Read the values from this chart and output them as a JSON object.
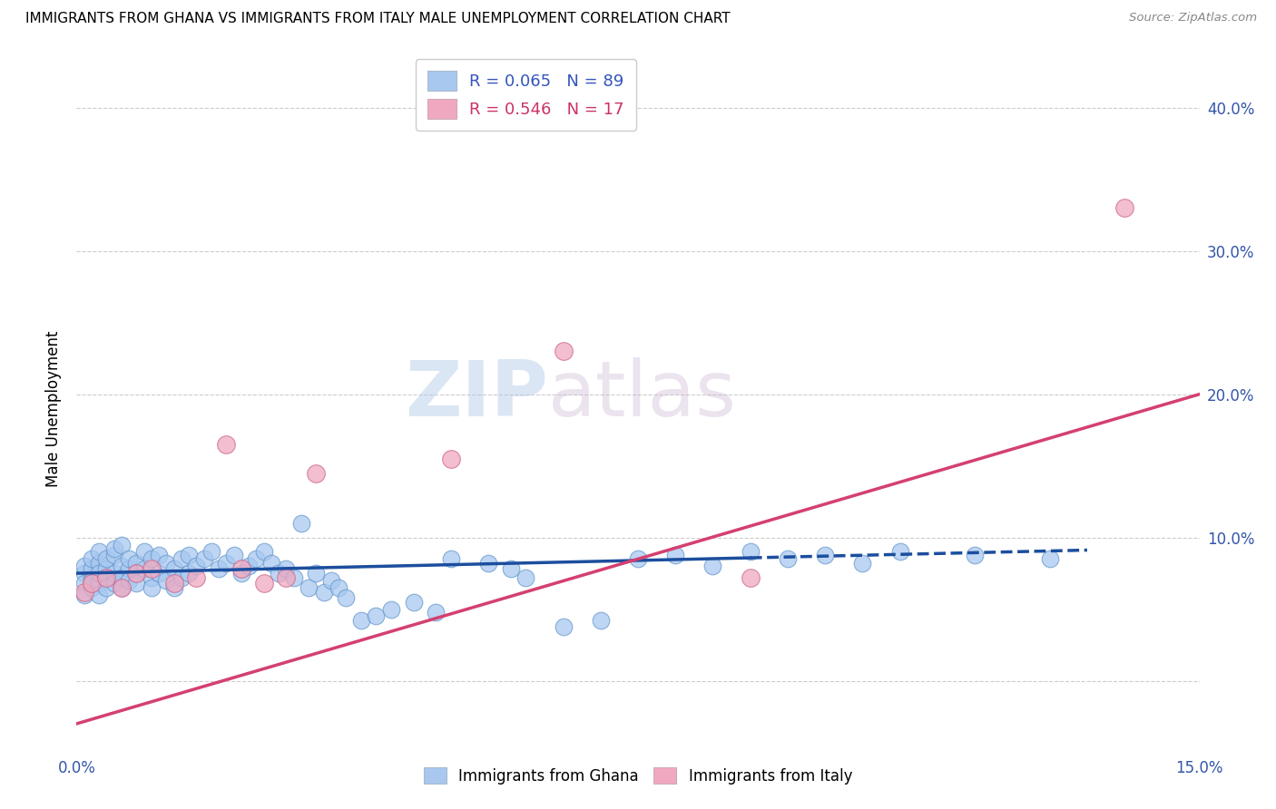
{
  "title": "IMMIGRANTS FROM GHANA VS IMMIGRANTS FROM ITALY MALE UNEMPLOYMENT CORRELATION CHART",
  "source": "Source: ZipAtlas.com",
  "ylabel": "Male Unemployment",
  "xlim": [
    0.0,
    0.15
  ],
  "ylim": [
    -0.05,
    0.43
  ],
  "ghana_R": 0.065,
  "ghana_N": 89,
  "italy_R": 0.546,
  "italy_N": 17,
  "ghana_color": "#a8c8f0",
  "ghana_line_color": "#1c4e9e",
  "italy_color": "#f0a8c0",
  "italy_line_color": "#d44070",
  "watermark_zip": "ZIP",
  "watermark_atlas": "atlas",
  "ghana_x": [
    0.001,
    0.001,
    0.001,
    0.001,
    0.002,
    0.002,
    0.002,
    0.002,
    0.002,
    0.003,
    0.003,
    0.003,
    0.003,
    0.003,
    0.004,
    0.004,
    0.004,
    0.004,
    0.005,
    0.005,
    0.005,
    0.005,
    0.006,
    0.006,
    0.006,
    0.006,
    0.007,
    0.007,
    0.007,
    0.008,
    0.008,
    0.008,
    0.009,
    0.009,
    0.01,
    0.01,
    0.01,
    0.011,
    0.011,
    0.012,
    0.012,
    0.013,
    0.013,
    0.014,
    0.014,
    0.015,
    0.015,
    0.016,
    0.017,
    0.018,
    0.019,
    0.02,
    0.021,
    0.022,
    0.023,
    0.024,
    0.025,
    0.026,
    0.027,
    0.028,
    0.029,
    0.03,
    0.031,
    0.032,
    0.033,
    0.034,
    0.035,
    0.036,
    0.038,
    0.04,
    0.042,
    0.045,
    0.048,
    0.05,
    0.055,
    0.058,
    0.06,
    0.065,
    0.07,
    0.075,
    0.08,
    0.085,
    0.09,
    0.095,
    0.1,
    0.105,
    0.11,
    0.12,
    0.13
  ],
  "ghana_y": [
    0.075,
    0.08,
    0.068,
    0.06,
    0.072,
    0.078,
    0.065,
    0.085,
    0.07,
    0.082,
    0.068,
    0.075,
    0.06,
    0.09,
    0.078,
    0.072,
    0.065,
    0.085,
    0.088,
    0.075,
    0.068,
    0.092,
    0.08,
    0.072,
    0.065,
    0.095,
    0.078,
    0.085,
    0.07,
    0.082,
    0.075,
    0.068,
    0.09,
    0.078,
    0.085,
    0.072,
    0.065,
    0.088,
    0.075,
    0.082,
    0.07,
    0.078,
    0.065,
    0.085,
    0.072,
    0.088,
    0.075,
    0.08,
    0.085,
    0.09,
    0.078,
    0.082,
    0.088,
    0.075,
    0.08,
    0.085,
    0.09,
    0.082,
    0.075,
    0.078,
    0.072,
    0.11,
    0.065,
    0.075,
    0.062,
    0.07,
    0.065,
    0.058,
    0.042,
    0.045,
    0.05,
    0.055,
    0.048,
    0.085,
    0.082,
    0.078,
    0.072,
    0.038,
    0.042,
    0.085,
    0.088,
    0.08,
    0.09,
    0.085,
    0.088,
    0.082,
    0.09,
    0.088,
    0.085
  ],
  "italy_x": [
    0.001,
    0.002,
    0.004,
    0.006,
    0.008,
    0.01,
    0.013,
    0.016,
    0.02,
    0.022,
    0.025,
    0.028,
    0.032,
    0.05,
    0.065,
    0.09,
    0.14
  ],
  "italy_y": [
    0.062,
    0.068,
    0.072,
    0.065,
    0.075,
    0.078,
    0.068,
    0.072,
    0.165,
    0.078,
    0.068,
    0.072,
    0.145,
    0.155,
    0.23,
    0.072,
    0.33
  ],
  "italy_line_x0": 0.0,
  "italy_line_x1": 0.15,
  "ghana_line_solid_x1": 0.09,
  "ghana_line_dash_x0": 0.09,
  "ghana_line_x1": 0.135
}
